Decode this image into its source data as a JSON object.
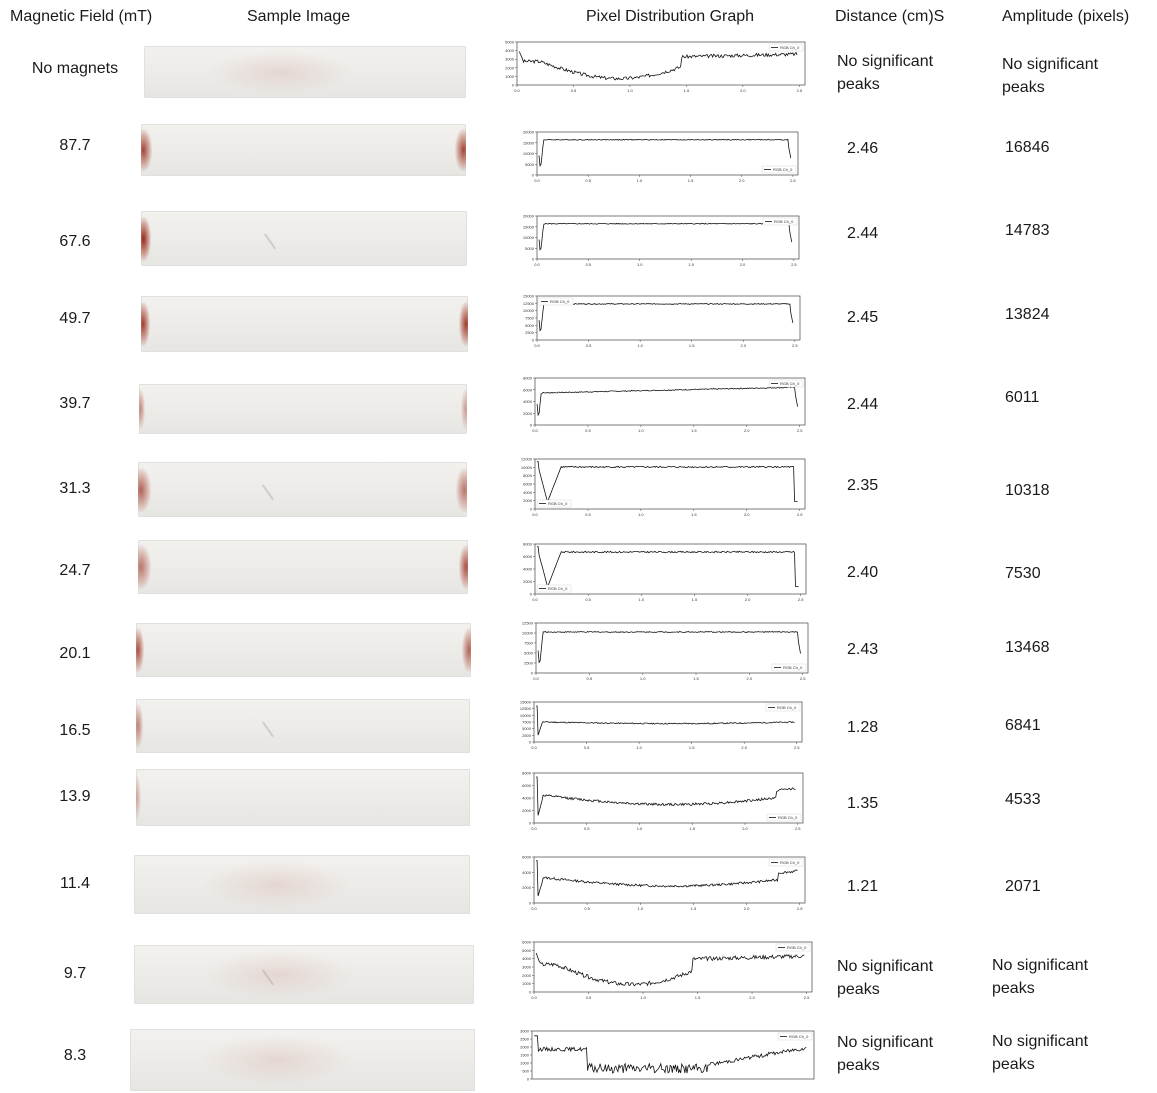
{
  "headers": {
    "field": "Magnetic Field (mT)",
    "image": "Sample Image",
    "graph": "Pixel Distribution Graph",
    "distance": "Distance (cm)S",
    "amplitude": "Amplitude (pixels)"
  },
  "rows": [
    {
      "field": "No magnets",
      "distance": "No significant peaks",
      "amplitude": "No significant peaks",
      "graph": {
        "legend": "RGB Ch_0",
        "ylim": [
          0,
          5000
        ],
        "yticks": [
          "0",
          "1000",
          "2000",
          "3000",
          "4000",
          "5000"
        ],
        "xticks": [
          "0.0",
          "0.5",
          "1.0",
          "1.5",
          "2.0",
          "2.5"
        ]
      }
    },
    {
      "field": "87.7",
      "distance": "2.46",
      "amplitude": "16846",
      "graph": {
        "legend": "RGB Ch_0",
        "ylim": [
          0,
          20000
        ],
        "yticks": [
          "0",
          "5000",
          "10000",
          "15000",
          "20000"
        ],
        "xticks": [
          "0.0",
          "0.5",
          "1.0",
          "1.5",
          "2.0",
          "2.5"
        ]
      }
    },
    {
      "field": "67.6",
      "distance": "2.44",
      "amplitude": "14783",
      "graph": {
        "legend": "RGB Ch_0",
        "ylim": [
          0,
          20000
        ],
        "yticks": [
          "0",
          "5000",
          "10000",
          "15000",
          "20000"
        ],
        "xticks": [
          "0.0",
          "0.5",
          "1.0",
          "1.5",
          "2.0",
          "2.5"
        ]
      }
    },
    {
      "field": "49.7",
      "distance": "2.45",
      "amplitude": "13824",
      "graph": {
        "legend": "RGB Ch_0",
        "ylim": [
          0,
          15000
        ],
        "yticks": [
          "0",
          "2500",
          "5000",
          "7500",
          "10000",
          "12500",
          "15000"
        ],
        "xticks": [
          "0.0",
          "0.5",
          "1.0",
          "1.5",
          "2.0",
          "2.5"
        ]
      }
    },
    {
      "field": "39.7",
      "distance": "2.44",
      "amplitude": "6011",
      "graph": {
        "legend": "RGB Ch_0",
        "ylim": [
          0,
          8000
        ],
        "yticks": [
          "0",
          "2000",
          "4000",
          "6000",
          "8000"
        ],
        "xticks": [
          "0.0",
          "0.5",
          "1.0",
          "1.5",
          "2.0",
          "2.5"
        ]
      }
    },
    {
      "field": "31.3",
      "distance": "2.35",
      "amplitude": "10318",
      "graph": {
        "legend": "RGB Ch_0",
        "ylim": [
          0,
          12000
        ],
        "yticks": [
          "0",
          "2000",
          "4000",
          "6000",
          "8000",
          "10000",
          "12000"
        ],
        "xticks": [
          "0.0",
          "0.5",
          "1.0",
          "1.5",
          "2.0",
          "2.5"
        ]
      }
    },
    {
      "field": "24.7",
      "distance": "2.40",
      "amplitude": "7530",
      "graph": {
        "legend": "RGB Ch_0",
        "ylim": [
          0,
          8000
        ],
        "yticks": [
          "0",
          "2000",
          "4000",
          "6000",
          "8000"
        ],
        "xticks": [
          "0.0",
          "0.5",
          "1.0",
          "1.5",
          "2.0",
          "2.5"
        ]
      }
    },
    {
      "field": "20.1",
      "distance": "2.43",
      "amplitude": "13468",
      "graph": {
        "legend": "RGB Ch_0",
        "ylim": [
          0,
          12500
        ],
        "yticks": [
          "0",
          "2500",
          "5000",
          "7500",
          "10000",
          "12500"
        ],
        "xticks": [
          "0.0",
          "0.5",
          "1.0",
          "1.5",
          "2.0",
          "2.5"
        ]
      }
    },
    {
      "field": "16.5",
      "distance": "1.28",
      "amplitude": "6841",
      "graph": {
        "legend": "RGB Ch_0",
        "ylim": [
          0,
          15000
        ],
        "yticks": [
          "0",
          "2500",
          "5000",
          "7500",
          "10000",
          "12500",
          "15000"
        ],
        "xticks": [
          "0.0",
          "0.5",
          "1.0",
          "1.5",
          "2.0",
          "2.5"
        ]
      }
    },
    {
      "field": "13.9",
      "distance": "1.35",
      "amplitude": "4533",
      "graph": {
        "legend": "RGB Ch_0",
        "ylim": [
          0,
          8000
        ],
        "yticks": [
          "0",
          "2000",
          "4000",
          "6000",
          "8000"
        ],
        "xticks": [
          "0.0",
          "0.5",
          "1.0",
          "1.5",
          "2.0",
          "2.5"
        ]
      }
    },
    {
      "field": "11.4",
      "distance": "1.21",
      "amplitude": "2071",
      "graph": {
        "legend": "RGB Ch_0",
        "ylim": [
          0,
          6000
        ],
        "yticks": [
          "0",
          "2000",
          "4000",
          "6000"
        ],
        "xticks": [
          "0.0",
          "0.5",
          "1.0",
          "1.5",
          "2.0",
          "2.5"
        ]
      }
    },
    {
      "field": "9.7",
      "distance": "No significant peaks",
      "amplitude": "No significant peaks",
      "graph": {
        "legend": "RGB Ch_0",
        "ylim": [
          0,
          6000
        ],
        "yticks": [
          "0",
          "1000",
          "2000",
          "3000",
          "4000",
          "5000",
          "6000"
        ],
        "xticks": [
          "0.0",
          "0.5",
          "1.0",
          "1.5",
          "2.0",
          "2.5"
        ]
      }
    },
    {
      "field": "8.3",
      "distance": "No significant peaks",
      "amplitude": "No significant peaks",
      "graph": {
        "legend": "RGB Ch_0",
        "ylim": [
          0,
          3000
        ],
        "yticks": [
          "0",
          "500",
          "1000",
          "1500",
          "2000",
          "2500",
          "3000"
        ],
        "xticks": []
      }
    }
  ]
}
